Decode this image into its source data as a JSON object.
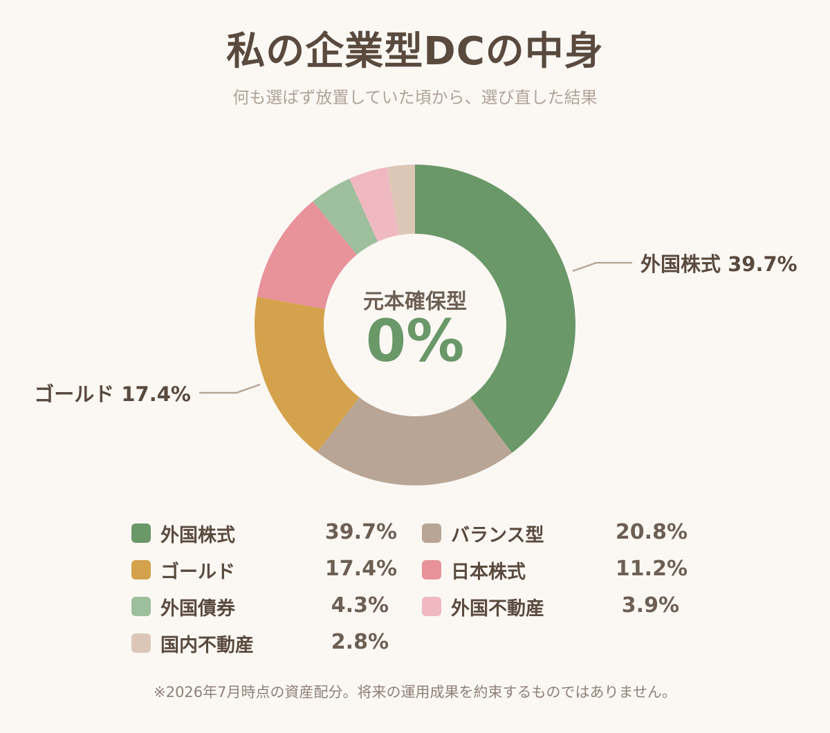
{
  "header": {
    "title": "私の企業型DCの中身",
    "subtitle": "何も選ばず放置していた頃から、選び直した結果"
  },
  "center": {
    "label": "元本確保型",
    "value": "0%"
  },
  "chart_data": {
    "type": "pie",
    "categories": [
      "外国株式",
      "バランス型",
      "ゴールド",
      "日本株式",
      "外国債券",
      "外国不動産",
      "国内不動産"
    ],
    "values": [
      39.7,
      20.8,
      17.4,
      11.2,
      4.3,
      3.9,
      2.8
    ],
    "labels": [
      "39.7%",
      "20.8%",
      "17.4%",
      "11.2%",
      "4.3%",
      "3.9%",
      "2.8%"
    ],
    "colors": [
      "#6a9868",
      "#b8a595",
      "#d4a24c",
      "#e8929a",
      "#9ebf9c",
      "#f0b8c0",
      "#dcc7b7"
    ],
    "callouts": [
      {
        "text": "外国株式 39.7%",
        "category": "外国株式"
      },
      {
        "text": "ゴールド 17.4%",
        "category": "ゴールド"
      }
    ]
  },
  "legend": [
    {
      "label": "外国株式",
      "value": "39.7%",
      "color": "#6a9868"
    },
    {
      "label": "バランス型",
      "value": "20.8%",
      "color": "#b8a595"
    },
    {
      "label": "ゴールド",
      "value": "17.4%",
      "color": "#d4a24c"
    },
    {
      "label": "日本株式",
      "value": "11.2%",
      "color": "#e8929a"
    },
    {
      "label": "外国債券",
      "value": "4.3%",
      "color": "#9ebf9c"
    },
    {
      "label": "外国不動産",
      "value": "3.9%",
      "color": "#f0b8c0"
    },
    {
      "label": "国内不動産",
      "value": "2.8%",
      "color": "#dcc7b7"
    }
  ],
  "footnote": "※2026年7月時点の資産配分。将来の運用成果を約束するものではありません。"
}
